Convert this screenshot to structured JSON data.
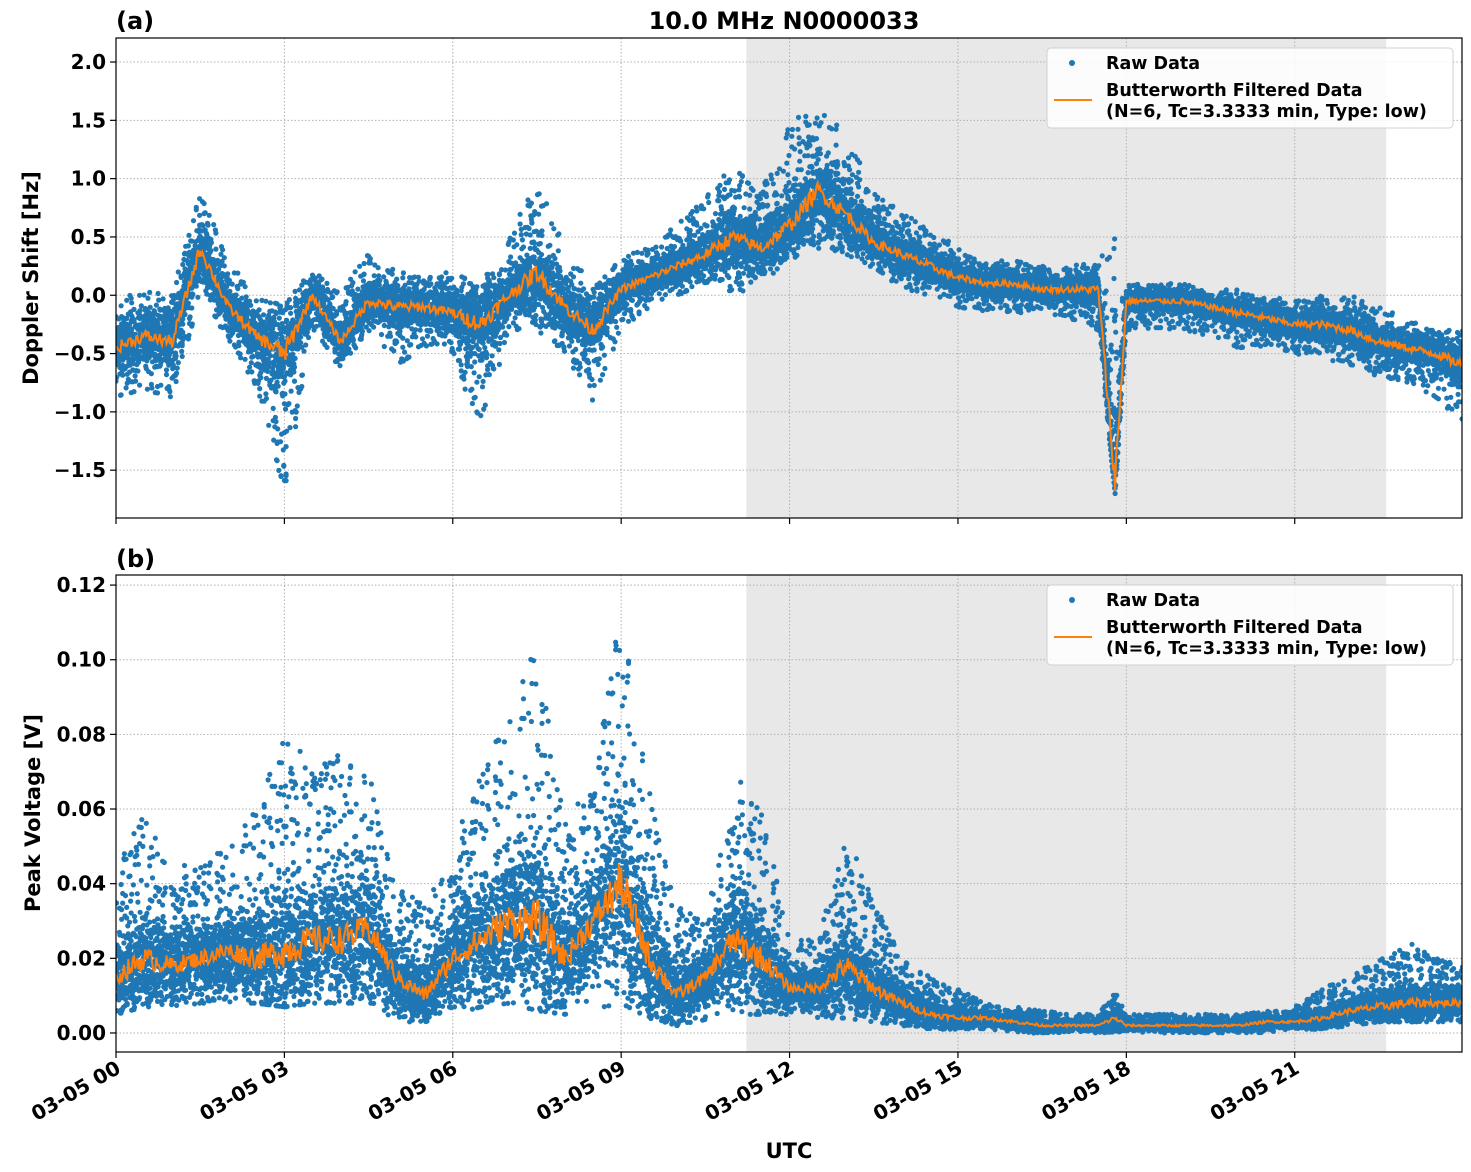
{
  "chart_data": {
    "type": "scatter",
    "title": "10.0 MHz N0000033",
    "xlabel": "UTC",
    "x_unit": "hours UTC on 03-05",
    "xlim": [
      0,
      23.98
    ],
    "x_ticks": [
      0,
      3,
      6,
      9,
      12,
      15,
      18,
      21
    ],
    "x_tick_labels": [
      "03-05 00",
      "03-05 03",
      "03-05 06",
      "03-05 09",
      "03-05 12",
      "03-05 15",
      "03-05 18",
      "03-05 21"
    ],
    "shaded_region": [
      11.23,
      22.63
    ],
    "shade_color": "#e8e8e8",
    "grid": true,
    "legend": {
      "placement": "top-right",
      "raw_label": "Raw Data",
      "filtered_label_1": "Butterworth Filtered Data",
      "filtered_label_2": "(N=6, Tc=3.3333 min, Type: low)"
    },
    "colors": {
      "raw": "#1f77b4",
      "filtered": "#ff7f0e"
    },
    "panels": [
      {
        "panel_label": "(a)",
        "ylabel": "Doppler Shift [Hz]",
        "ylim": [
          -1.91,
          2.206
        ],
        "y_ticks": [
          -1.5,
          -1.0,
          -0.5,
          0.0,
          0.5,
          1.0,
          1.5,
          2.0
        ],
        "y_tick_labels": [
          "−1.5",
          "−1.0",
          "−0.5",
          "0.0",
          "0.5",
          "1.0",
          "1.5",
          "2.0"
        ],
        "x": [
          0,
          0.5,
          1,
          1.5,
          2,
          2.5,
          3,
          3.5,
          4,
          4.5,
          5,
          5.5,
          6,
          6.5,
          7,
          7.5,
          8,
          8.5,
          9,
          9.5,
          10,
          10.5,
          11,
          11.5,
          12,
          12.5,
          13,
          13.5,
          14,
          14.5,
          15,
          15.5,
          16,
          16.5,
          17,
          17.5,
          17.8,
          18,
          18.5,
          19,
          19.5,
          20,
          20.5,
          21,
          21.5,
          22,
          22.5,
          23,
          23.5,
          24
        ],
        "filtered": [
          -0.45,
          -0.35,
          -0.4,
          0.4,
          -0.1,
          -0.35,
          -0.5,
          0.0,
          -0.4,
          -0.05,
          -0.1,
          -0.1,
          -0.15,
          -0.25,
          0.0,
          0.2,
          -0.1,
          -0.3,
          0.05,
          0.15,
          0.25,
          0.35,
          0.5,
          0.4,
          0.6,
          0.9,
          0.7,
          0.45,
          0.35,
          0.25,
          0.15,
          0.1,
          0.1,
          0.05,
          0.05,
          0.05,
          -1.6,
          -0.05,
          -0.05,
          -0.05,
          -0.1,
          -0.15,
          -0.2,
          -0.25,
          -0.25,
          -0.3,
          -0.4,
          -0.45,
          -0.5,
          -0.6
        ],
        "raw_high": [
          -0.05,
          0.05,
          0.0,
          0.95,
          0.3,
          0.0,
          -0.1,
          0.25,
          0.0,
          0.4,
          0.2,
          0.2,
          0.2,
          0.1,
          0.5,
          1.0,
          0.4,
          0.1,
          0.3,
          0.45,
          0.6,
          0.9,
          1.1,
          0.9,
          1.5,
          1.6,
          1.4,
          0.9,
          0.7,
          0.6,
          0.4,
          0.3,
          0.3,
          0.25,
          0.25,
          0.3,
          0.5,
          0.1,
          0.1,
          0.1,
          0.05,
          0.05,
          0.0,
          -0.05,
          0.0,
          0.0,
          -0.1,
          -0.2,
          -0.3,
          -0.3
        ],
        "raw_low": [
          -0.9,
          -0.8,
          -0.9,
          0.0,
          -0.4,
          -0.8,
          -1.7,
          -0.3,
          -0.65,
          -0.3,
          -0.6,
          -0.45,
          -0.5,
          -1.2,
          -0.3,
          -0.3,
          -0.5,
          -0.95,
          -0.3,
          -0.1,
          0.0,
          0.1,
          0.0,
          0.1,
          0.3,
          0.4,
          0.35,
          0.2,
          0.05,
          0.0,
          -0.1,
          -0.15,
          -0.15,
          -0.15,
          -0.2,
          -0.3,
          -1.7,
          -0.3,
          -0.3,
          -0.3,
          -0.35,
          -0.45,
          -0.45,
          -0.5,
          -0.55,
          -0.6,
          -0.7,
          -0.75,
          -0.9,
          -1.1
        ]
      },
      {
        "panel_label": "(b)",
        "ylabel": "Peak Voltage [V]",
        "ylim": [
          -0.0051,
          0.1227
        ],
        "y_ticks": [
          0.0,
          0.02,
          0.04,
          0.06,
          0.08,
          0.1,
          0.12
        ],
        "y_tick_labels": [
          "0.00",
          "0.02",
          "0.04",
          "0.06",
          "0.08",
          "0.10",
          "0.12"
        ],
        "x": [
          0,
          0.5,
          1,
          1.5,
          2,
          2.5,
          3,
          3.5,
          4,
          4.5,
          5,
          5.5,
          6,
          6.5,
          7,
          7.5,
          8,
          8.5,
          9,
          9.5,
          10,
          10.5,
          11,
          11.5,
          12,
          12.5,
          13,
          13.5,
          14,
          14.5,
          15,
          15.5,
          16,
          16.5,
          17,
          17.5,
          17.8,
          18,
          18.5,
          19,
          19.5,
          20,
          20.5,
          21,
          21.5,
          22,
          22.5,
          23,
          23.5,
          24
        ],
        "filtered": [
          0.015,
          0.02,
          0.018,
          0.02,
          0.022,
          0.02,
          0.022,
          0.025,
          0.025,
          0.028,
          0.015,
          0.01,
          0.02,
          0.025,
          0.03,
          0.03,
          0.02,
          0.03,
          0.04,
          0.02,
          0.01,
          0.015,
          0.025,
          0.02,
          0.012,
          0.012,
          0.018,
          0.012,
          0.008,
          0.005,
          0.004,
          0.004,
          0.003,
          0.002,
          0.002,
          0.002,
          0.004,
          0.002,
          0.002,
          0.002,
          0.002,
          0.002,
          0.003,
          0.003,
          0.004,
          0.006,
          0.007,
          0.008,
          0.008,
          0.008
        ],
        "raw_high": [
          0.045,
          0.06,
          0.045,
          0.045,
          0.05,
          0.06,
          0.085,
          0.07,
          0.075,
          0.07,
          0.04,
          0.035,
          0.05,
          0.07,
          0.085,
          0.105,
          0.06,
          0.065,
          0.115,
          0.065,
          0.035,
          0.03,
          0.07,
          0.06,
          0.025,
          0.025,
          0.055,
          0.035,
          0.02,
          0.015,
          0.012,
          0.008,
          0.007,
          0.006,
          0.005,
          0.005,
          0.012,
          0.005,
          0.005,
          0.005,
          0.005,
          0.005,
          0.006,
          0.007,
          0.012,
          0.015,
          0.02,
          0.025,
          0.02,
          0.018
        ],
        "raw_low": [
          0.005,
          0.007,
          0.007,
          0.008,
          0.008,
          0.008,
          0.007,
          0.008,
          0.008,
          0.008,
          0.003,
          0.003,
          0.005,
          0.007,
          0.008,
          0.006,
          0.005,
          0.006,
          0.008,
          0.004,
          0.002,
          0.003,
          0.005,
          0.005,
          0.004,
          0.004,
          0.004,
          0.003,
          0.002,
          0.001,
          0.001,
          0.001,
          0.0,
          0.0,
          0.0,
          0.0,
          0.0,
          0.0,
          0.0,
          0.0,
          0.0,
          0.0,
          0.0,
          0.001,
          0.001,
          0.002,
          0.003,
          0.003,
          0.003,
          0.003
        ]
      }
    ]
  }
}
